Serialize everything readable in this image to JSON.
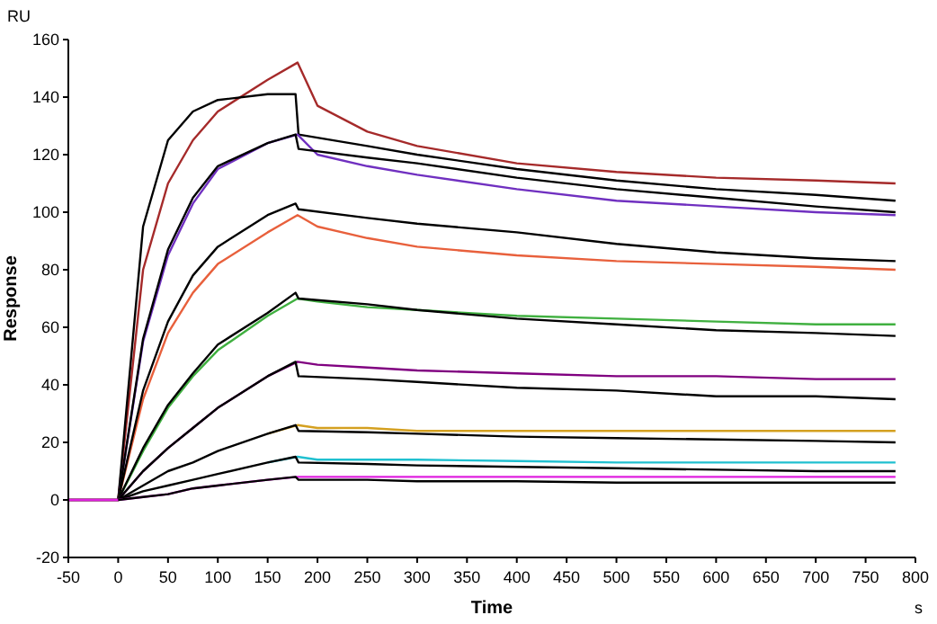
{
  "chart_data": {
    "type": "line",
    "xlabel": "Time",
    "ylabel": "Response",
    "annotations": [
      "RU",
      "s"
    ],
    "xlim": [
      -50,
      800
    ],
    "xticks": [
      -50,
      0,
      50,
      100,
      150,
      200,
      250,
      300,
      350,
      400,
      450,
      500,
      550,
      600,
      650,
      700,
      750,
      800
    ],
    "ylim": [
      -20,
      160
    ],
    "yticks": [
      -20,
      0,
      20,
      40,
      60,
      80,
      100,
      120,
      140,
      160
    ],
    "grid": false,
    "marker": "none",
    "line_style": "solid",
    "series": [
      {
        "color": "#a52a2a",
        "x": [
          -50,
          0,
          25,
          50,
          75,
          100,
          150,
          180,
          200,
          250,
          300,
          400,
          500,
          600,
          700,
          780
        ],
        "values": [
          0,
          0,
          80,
          110,
          125,
          135,
          146,
          152,
          137,
          128,
          123,
          117,
          114,
          112,
          111,
          110
        ]
      },
      {
        "color": "#000000",
        "x": [
          0,
          25,
          50,
          75,
          100,
          150,
          178,
          181,
          250,
          300,
          400,
          500,
          600,
          700,
          780
        ],
        "values": [
          0,
          95,
          125,
          135,
          139,
          141,
          141,
          127,
          123,
          120,
          115,
          111,
          108,
          106,
          104
        ]
      },
      {
        "color": "#7030c0",
        "x": [
          -50,
          0,
          25,
          50,
          75,
          100,
          150,
          180,
          200,
          250,
          300,
          400,
          500,
          600,
          700,
          780
        ],
        "values": [
          0,
          0,
          55,
          85,
          103,
          115,
          124,
          127,
          120,
          116,
          113,
          108,
          104,
          102,
          100,
          99
        ]
      },
      {
        "color": "#000000",
        "x": [
          0,
          25,
          50,
          75,
          100,
          150,
          178,
          181,
          250,
          300,
          400,
          500,
          600,
          700,
          780
        ],
        "values": [
          0,
          56,
          87,
          105,
          116,
          124,
          127,
          122,
          119,
          117,
          112,
          108,
          105,
          102,
          100
        ]
      },
      {
        "color": "#e8603c",
        "x": [
          -50,
          0,
          25,
          50,
          75,
          100,
          150,
          180,
          200,
          250,
          300,
          400,
          500,
          600,
          700,
          780
        ],
        "values": [
          0,
          0,
          35,
          58,
          72,
          82,
          93,
          99,
          95,
          91,
          88,
          85,
          83,
          82,
          81,
          80
        ]
      },
      {
        "color": "#000000",
        "x": [
          0,
          25,
          50,
          75,
          100,
          150,
          178,
          181,
          250,
          300,
          400,
          500,
          600,
          700,
          780
        ],
        "values": [
          0,
          38,
          62,
          78,
          88,
          99,
          103,
          101,
          98,
          96,
          93,
          89,
          86,
          84,
          83
        ]
      },
      {
        "color": "#40b040",
        "x": [
          -50,
          0,
          25,
          50,
          75,
          100,
          150,
          180,
          200,
          250,
          300,
          400,
          500,
          600,
          700,
          780
        ],
        "values": [
          0,
          0,
          17,
          32,
          43,
          52,
          64,
          70,
          69,
          67,
          66,
          64,
          63,
          62,
          61,
          61
        ]
      },
      {
        "color": "#000000",
        "x": [
          0,
          25,
          50,
          75,
          100,
          150,
          178,
          181,
          250,
          300,
          400,
          500,
          600,
          700,
          780
        ],
        "values": [
          0,
          18,
          33,
          44,
          54,
          65,
          72,
          70,
          68,
          66,
          63,
          61,
          59,
          58,
          57
        ]
      },
      {
        "color": "#800080",
        "x": [
          -50,
          0,
          25,
          50,
          75,
          100,
          150,
          180,
          200,
          250,
          300,
          400,
          500,
          600,
          700,
          780
        ],
        "values": [
          0,
          0,
          10,
          18,
          25,
          32,
          43,
          48,
          47,
          46,
          45,
          44,
          43,
          43,
          42,
          42
        ]
      },
      {
        "color": "#000000",
        "x": [
          0,
          25,
          50,
          75,
          100,
          150,
          178,
          181,
          250,
          300,
          400,
          500,
          600,
          700,
          780
        ],
        "values": [
          0,
          10,
          18,
          25,
          32,
          43,
          48,
          43,
          42,
          41,
          39,
          38,
          36,
          36,
          35
        ]
      },
      {
        "color": "#d4a020",
        "x": [
          150,
          180,
          200,
          250,
          300,
          400,
          500,
          600,
          700,
          780
        ],
        "values": [
          23,
          26,
          25,
          25,
          24,
          24,
          24,
          24,
          24,
          24
        ]
      },
      {
        "color": "#000000",
        "x": [
          0,
          25,
          50,
          75,
          100,
          150,
          178,
          181,
          250,
          300,
          400,
          500,
          600,
          700,
          780
        ],
        "values": [
          0,
          5,
          10,
          13,
          17,
          23,
          26,
          24,
          23.5,
          23,
          22,
          21.5,
          21,
          20.5,
          20
        ]
      },
      {
        "color": "#20c0d0",
        "x": [
          150,
          180,
          200,
          250,
          300,
          400,
          500,
          600,
          700,
          780
        ],
        "values": [
          13,
          15,
          14,
          14,
          14,
          13.5,
          13,
          13,
          13,
          13
        ]
      },
      {
        "color": "#000000",
        "x": [
          0,
          25,
          50,
          75,
          100,
          150,
          178,
          181,
          250,
          300,
          400,
          500,
          600,
          700,
          780
        ],
        "values": [
          0,
          3,
          5,
          7,
          9,
          13,
          15,
          13,
          12.5,
          12,
          11.5,
          11,
          10.5,
          10,
          10
        ]
      },
      {
        "color": "#e020e0",
        "x": [
          -50,
          0,
          25,
          50,
          75,
          100,
          150,
          180,
          200,
          250,
          300,
          400,
          500,
          600,
          700,
          780
        ],
        "values": [
          0,
          0,
          1,
          2,
          4,
          5,
          7,
          8,
          8,
          8,
          8,
          8,
          8,
          8,
          8,
          8
        ]
      },
      {
        "color": "#000000",
        "x": [
          0,
          25,
          50,
          75,
          100,
          150,
          178,
          181,
          250,
          300,
          400,
          500,
          600,
          700,
          780
        ],
        "values": [
          0,
          1,
          2,
          4,
          5,
          7,
          8,
          7,
          7,
          6.5,
          6.5,
          6,
          6,
          6,
          6
        ]
      }
    ]
  }
}
